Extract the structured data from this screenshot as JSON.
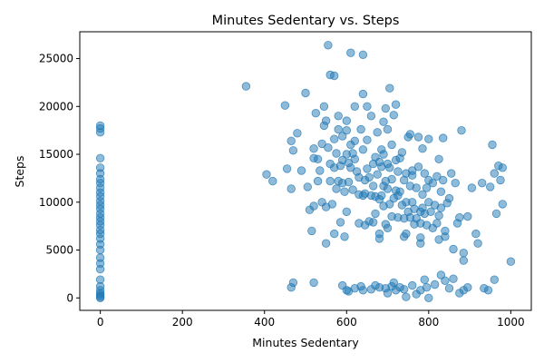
{
  "chart_data": {
    "type": "scatter",
    "title": "Minutes Sedentary vs. Steps",
    "xlabel": "Minutes Sedentary",
    "ylabel": "Steps",
    "xlim": [
      -50,
      1050
    ],
    "ylim": [
      -1300,
      27800
    ],
    "xticks": [
      0,
      200,
      400,
      600,
      800,
      1000
    ],
    "yticks": [
      0,
      5000,
      10000,
      15000,
      20000,
      25000
    ],
    "grid": false,
    "marker_color": "#1f77b4",
    "marker_alpha": 0.5,
    "points": [
      [
        0,
        0
      ],
      [
        0,
        120
      ],
      [
        0,
        300
      ],
      [
        0,
        500
      ],
      [
        0,
        800
      ],
      [
        0,
        1200
      ],
      [
        0,
        1900
      ],
      [
        0,
        3000
      ],
      [
        0,
        3600
      ],
      [
        0,
        4200
      ],
      [
        0,
        5000
      ],
      [
        0,
        5600
      ],
      [
        0,
        6200
      ],
      [
        0,
        6700
      ],
      [
        0,
        7100
      ],
      [
        0,
        7600
      ],
      [
        0,
        8000
      ],
      [
        0,
        8400
      ],
      [
        0,
        8800
      ],
      [
        0,
        9300
      ],
      [
        0,
        9700
      ],
      [
        0,
        10100
      ],
      [
        0,
        10600
      ],
      [
        0,
        11000
      ],
      [
        0,
        11500
      ],
      [
        0,
        12000
      ],
      [
        0,
        12400
      ],
      [
        0,
        13000
      ],
      [
        0,
        13600
      ],
      [
        0,
        14600
      ],
      [
        0,
        17300
      ],
      [
        0,
        17700
      ],
      [
        0,
        18000
      ],
      [
        355,
        22100
      ],
      [
        405,
        12900
      ],
      [
        420,
        12200
      ],
      [
        450,
        20100
      ],
      [
        455,
        13500
      ],
      [
        465,
        11400
      ],
      [
        465,
        16400
      ],
      [
        470,
        15400
      ],
      [
        480,
        17200
      ],
      [
        490,
        13300
      ],
      [
        500,
        21400
      ],
      [
        505,
        11600
      ],
      [
        510,
        9200
      ],
      [
        515,
        7000
      ],
      [
        520,
        15600
      ],
      [
        520,
        14600
      ],
      [
        520,
        9600
      ],
      [
        525,
        19300
      ],
      [
        530,
        12200
      ],
      [
        530,
        14500
      ],
      [
        535,
        13300
      ],
      [
        540,
        16100
      ],
      [
        540,
        10000
      ],
      [
        545,
        18000
      ],
      [
        545,
        20000
      ],
      [
        550,
        18500
      ],
      [
        550,
        5700
      ],
      [
        550,
        9500
      ],
      [
        555,
        15700
      ],
      [
        555,
        26400
      ],
      [
        560,
        14000
      ],
      [
        560,
        12200
      ],
      [
        560,
        23300
      ],
      [
        565,
        9800
      ],
      [
        570,
        16600
      ],
      [
        570,
        6700
      ],
      [
        570,
        13600
      ],
      [
        570,
        23200
      ],
      [
        575,
        11400
      ],
      [
        575,
        15100
      ],
      [
        580,
        12200
      ],
      [
        580,
        17600
      ],
      [
        580,
        19000
      ],
      [
        585,
        7900
      ],
      [
        585,
        13800
      ],
      [
        590,
        14400
      ],
      [
        590,
        12000
      ],
      [
        590,
        16900
      ],
      [
        595,
        6400
      ],
      [
        595,
        11100
      ],
      [
        600,
        9000
      ],
      [
        600,
        15000
      ],
      [
        600,
        17500
      ],
      [
        600,
        18500
      ],
      [
        605,
        14100
      ],
      [
        605,
        12100
      ],
      [
        610,
        16000
      ],
      [
        610,
        25600
      ],
      [
        610,
        13600
      ],
      [
        615,
        15100
      ],
      [
        615,
        11300
      ],
      [
        620,
        20000
      ],
      [
        620,
        16400
      ],
      [
        620,
        14500
      ],
      [
        625,
        13200
      ],
      [
        630,
        12600
      ],
      [
        630,
        7800
      ],
      [
        630,
        10800
      ],
      [
        635,
        17600
      ],
      [
        640,
        15500
      ],
      [
        640,
        10700
      ],
      [
        640,
        21300
      ],
      [
        640,
        25400
      ],
      [
        645,
        12300
      ],
      [
        645,
        10900
      ],
      [
        645,
        7600
      ],
      [
        650,
        20000
      ],
      [
        650,
        16500
      ],
      [
        650,
        13500
      ],
      [
        655,
        12600
      ],
      [
        655,
        8000
      ],
      [
        660,
        10700
      ],
      [
        660,
        19000
      ],
      [
        665,
        14000
      ],
      [
        665,
        11700
      ],
      [
        665,
        7900
      ],
      [
        670,
        10600
      ],
      [
        670,
        8800
      ],
      [
        670,
        14700
      ],
      [
        675,
        17300
      ],
      [
        675,
        12900
      ],
      [
        680,
        14200
      ],
      [
        680,
        10300
      ],
      [
        680,
        6700
      ],
      [
        680,
        6200
      ],
      [
        685,
        15500
      ],
      [
        685,
        13700
      ],
      [
        685,
        10700
      ],
      [
        690,
        11700
      ],
      [
        690,
        9600
      ],
      [
        690,
        15000
      ],
      [
        690,
        18400
      ],
      [
        695,
        19800
      ],
      [
        695,
        12200
      ],
      [
        695,
        7700
      ],
      [
        700,
        14000
      ],
      [
        700,
        11400
      ],
      [
        700,
        17600
      ],
      [
        700,
        7300
      ],
      [
        705,
        21900
      ],
      [
        705,
        13600
      ],
      [
        705,
        9800
      ],
      [
        710,
        12400
      ],
      [
        710,
        8500
      ],
      [
        710,
        16000
      ],
      [
        715,
        19100
      ],
      [
        715,
        10400
      ],
      [
        720,
        20200
      ],
      [
        720,
        14400
      ],
      [
        720,
        11200
      ],
      [
        725,
        10700
      ],
      [
        725,
        8400
      ],
      [
        725,
        13200
      ],
      [
        730,
        14600
      ],
      [
        730,
        11100
      ],
      [
        735,
        9700
      ],
      [
        735,
        15200
      ],
      [
        740,
        6400
      ],
      [
        740,
        12300
      ],
      [
        740,
        8300
      ],
      [
        745,
        13000
      ],
      [
        745,
        10000
      ],
      [
        745,
        6700
      ],
      [
        750,
        16800
      ],
      [
        750,
        9000
      ],
      [
        755,
        17100
      ],
      [
        755,
        11700
      ],
      [
        755,
        8400
      ],
      [
        760,
        12800
      ],
      [
        760,
        10000
      ],
      [
        760,
        13300
      ],
      [
        765,
        9300
      ],
      [
        765,
        7700
      ],
      [
        770,
        11500
      ],
      [
        770,
        8300
      ],
      [
        775,
        16800
      ],
      [
        775,
        13700
      ],
      [
        780,
        9000
      ],
      [
        780,
        7800
      ],
      [
        780,
        5700
      ],
      [
        780,
        6300
      ],
      [
        785,
        15600
      ],
      [
        785,
        10800
      ],
      [
        785,
        9400
      ],
      [
        790,
        13000
      ],
      [
        790,
        8800
      ],
      [
        795,
        11500
      ],
      [
        795,
        7600
      ],
      [
        800,
        16600
      ],
      [
        800,
        12300
      ],
      [
        800,
        10000
      ],
      [
        805,
        9000
      ],
      [
        810,
        12000
      ],
      [
        810,
        7300
      ],
      [
        815,
        9700
      ],
      [
        820,
        12700
      ],
      [
        820,
        7800
      ],
      [
        825,
        6100
      ],
      [
        825,
        14500
      ],
      [
        825,
        8600
      ],
      [
        830,
        11100
      ],
      [
        830,
        9400
      ],
      [
        835,
        16700
      ],
      [
        835,
        12300
      ],
      [
        840,
        7000
      ],
      [
        840,
        6400
      ],
      [
        845,
        9900
      ],
      [
        850,
        10400
      ],
      [
        855,
        13000
      ],
      [
        860,
        5100
      ],
      [
        865,
        12000
      ],
      [
        870,
        7800
      ],
      [
        875,
        8400
      ],
      [
        880,
        17500
      ],
      [
        885,
        4700
      ],
      [
        885,
        3900
      ],
      [
        895,
        8500
      ],
      [
        905,
        11500
      ],
      [
        915,
        6700
      ],
      [
        920,
        5700
      ],
      [
        930,
        12000
      ],
      [
        950,
        11600
      ],
      [
        955,
        16000
      ],
      [
        960,
        13000
      ],
      [
        965,
        8800
      ],
      [
        970,
        13800
      ],
      [
        975,
        12300
      ],
      [
        980,
        13600
      ],
      [
        980,
        9800
      ],
      [
        1000,
        3800
      ],
      [
        465,
        1100
      ],
      [
        470,
        1600
      ],
      [
        520,
        1600
      ],
      [
        590,
        1300
      ],
      [
        600,
        800
      ],
      [
        605,
        700
      ],
      [
        620,
        1000
      ],
      [
        635,
        1200
      ],
      [
        640,
        800
      ],
      [
        660,
        900
      ],
      [
        670,
        1300
      ],
      [
        680,
        1100
      ],
      [
        695,
        1000
      ],
      [
        700,
        500
      ],
      [
        710,
        1200
      ],
      [
        715,
        1600
      ],
      [
        720,
        800
      ],
      [
        730,
        1100
      ],
      [
        740,
        900
      ],
      [
        745,
        100
      ],
      [
        760,
        1300
      ],
      [
        770,
        400
      ],
      [
        780,
        800
      ],
      [
        790,
        1900
      ],
      [
        795,
        1100
      ],
      [
        800,
        0
      ],
      [
        815,
        1400
      ],
      [
        830,
        2400
      ],
      [
        840,
        1800
      ],
      [
        850,
        1000
      ],
      [
        860,
        2000
      ],
      [
        875,
        500
      ],
      [
        885,
        800
      ],
      [
        895,
        1100
      ],
      [
        935,
        1000
      ],
      [
        945,
        800
      ],
      [
        960,
        1900
      ]
    ]
  }
}
